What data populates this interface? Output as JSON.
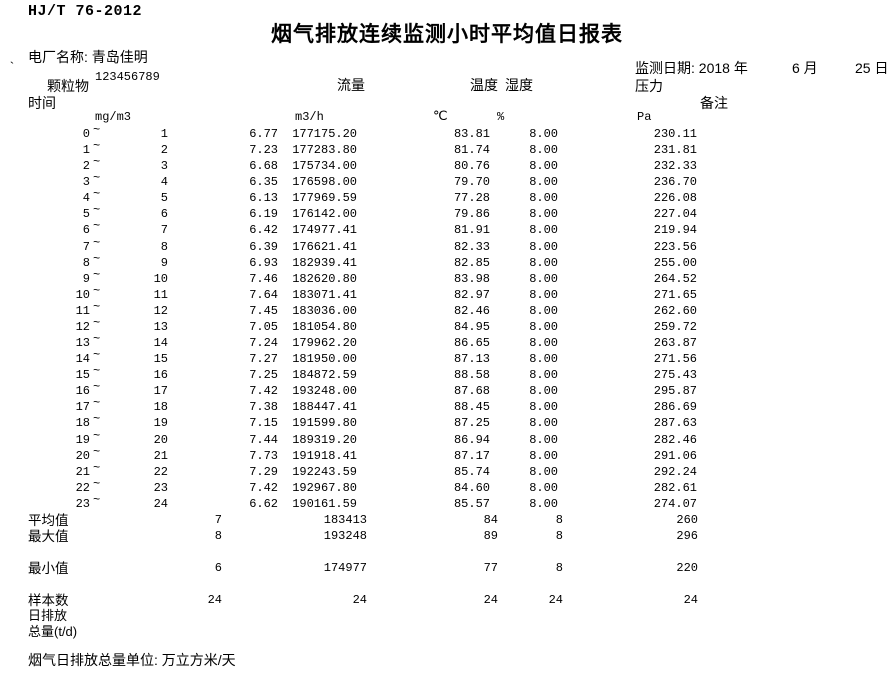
{
  "doc": {
    "standard": "HJ/T 76-2012",
    "title": "烟气排放连续监测小时平均值日报表",
    "plant_label": "电厂名称:",
    "plant_name": "青岛佳明",
    "tick": "`",
    "plant_code": "123456789",
    "date_label_year": "监测日期: 2018 年",
    "date_month": "6 月",
    "date_day": "25 日"
  },
  "columns": {
    "time": "时间",
    "particulate": "颗粒物",
    "flow": "流量",
    "temperature": "温度",
    "humidity": "湿度",
    "pressure": "压力",
    "remark": "备注",
    "units": {
      "particulate": "mg/m3",
      "flow": "m3/h",
      "temperature": "℃",
      "humidity": "%",
      "pressure": "Pa"
    }
  },
  "rows": [
    {
      "s": "0",
      "e": "1",
      "pm": "6.77",
      "fl": "177175.20",
      "t": "83.81",
      "h": "8.00",
      "p": "230.11"
    },
    {
      "s": "1",
      "e": "2",
      "pm": "7.23",
      "fl": "177283.80",
      "t": "81.74",
      "h": "8.00",
      "p": "231.81"
    },
    {
      "s": "2",
      "e": "3",
      "pm": "6.68",
      "fl": "175734.00",
      "t": "80.76",
      "h": "8.00",
      "p": "232.33"
    },
    {
      "s": "3",
      "e": "4",
      "pm": "6.35",
      "fl": "176598.00",
      "t": "79.70",
      "h": "8.00",
      "p": "236.70"
    },
    {
      "s": "4",
      "e": "5",
      "pm": "6.13",
      "fl": "177969.59",
      "t": "77.28",
      "h": "8.00",
      "p": "226.08"
    },
    {
      "s": "5",
      "e": "6",
      "pm": "6.19",
      "fl": "176142.00",
      "t": "79.86",
      "h": "8.00",
      "p": "227.04"
    },
    {
      "s": "6",
      "e": "7",
      "pm": "6.42",
      "fl": "174977.41",
      "t": "81.91",
      "h": "8.00",
      "p": "219.94"
    },
    {
      "s": "7",
      "e": "8",
      "pm": "6.39",
      "fl": "176621.41",
      "t": "82.33",
      "h": "8.00",
      "p": "223.56"
    },
    {
      "s": "8",
      "e": "9",
      "pm": "6.93",
      "fl": "182939.41",
      "t": "82.85",
      "h": "8.00",
      "p": "255.00"
    },
    {
      "s": "9",
      "e": "10",
      "pm": "7.46",
      "fl": "182620.80",
      "t": "83.98",
      "h": "8.00",
      "p": "264.52"
    },
    {
      "s": "10",
      "e": "11",
      "pm": "7.64",
      "fl": "183071.41",
      "t": "82.97",
      "h": "8.00",
      "p": "271.65"
    },
    {
      "s": "11",
      "e": "12",
      "pm": "7.45",
      "fl": "183036.00",
      "t": "82.46",
      "h": "8.00",
      "p": "262.60"
    },
    {
      "s": "12",
      "e": "13",
      "pm": "7.05",
      "fl": "181054.80",
      "t": "84.95",
      "h": "8.00",
      "p": "259.72"
    },
    {
      "s": "13",
      "e": "14",
      "pm": "7.24",
      "fl": "179962.20",
      "t": "86.65",
      "h": "8.00",
      "p": "263.87"
    },
    {
      "s": "14",
      "e": "15",
      "pm": "7.27",
      "fl": "181950.00",
      "t": "87.13",
      "h": "8.00",
      "p": "271.56"
    },
    {
      "s": "15",
      "e": "16",
      "pm": "7.25",
      "fl": "184872.59",
      "t": "88.58",
      "h": "8.00",
      "p": "275.43"
    },
    {
      "s": "16",
      "e": "17",
      "pm": "7.42",
      "fl": "193248.00",
      "t": "87.68",
      "h": "8.00",
      "p": "295.87"
    },
    {
      "s": "17",
      "e": "18",
      "pm": "7.38",
      "fl": "188447.41",
      "t": "88.45",
      "h": "8.00",
      "p": "286.69"
    },
    {
      "s": "18",
      "e": "19",
      "pm": "7.15",
      "fl": "191599.80",
      "t": "87.25",
      "h": "8.00",
      "p": "287.63"
    },
    {
      "s": "19",
      "e": "20",
      "pm": "7.44",
      "fl": "189319.20",
      "t": "86.94",
      "h": "8.00",
      "p": "282.46"
    },
    {
      "s": "20",
      "e": "21",
      "pm": "7.73",
      "fl": "191918.41",
      "t": "87.17",
      "h": "8.00",
      "p": "291.06"
    },
    {
      "s": "21",
      "e": "22",
      "pm": "7.29",
      "fl": "192243.59",
      "t": "85.74",
      "h": "8.00",
      "p": "292.24"
    },
    {
      "s": "22",
      "e": "23",
      "pm": "7.42",
      "fl": "192967.80",
      "t": "84.60",
      "h": "8.00",
      "p": "282.61"
    },
    {
      "s": "23",
      "e": "24",
      "pm": "6.62",
      "fl": "190161.59",
      "t": "85.57",
      "h": "8.00",
      "p": "274.07"
    }
  ],
  "summary": [
    {
      "label": "平均值",
      "pm": "7",
      "fl": "183413",
      "t": "84",
      "h": "8",
      "p": "260"
    },
    {
      "label": "最大值",
      "pm": "8",
      "fl": "193248",
      "t": "89",
      "h": "8",
      "p": "296"
    },
    {
      "label": "最小值",
      "pm": "6",
      "fl": "174977",
      "t": "77",
      "h": "8",
      "p": "220"
    },
    {
      "label": "样本数",
      "pm": "24",
      "fl": "24",
      "t": "24",
      "h": "24",
      "p": "24"
    }
  ],
  "daily_total": {
    "line1": "日排放",
    "line2": "总量(t/d)"
  },
  "footer": "烟气日排放总量单位: 万立方米/天"
}
